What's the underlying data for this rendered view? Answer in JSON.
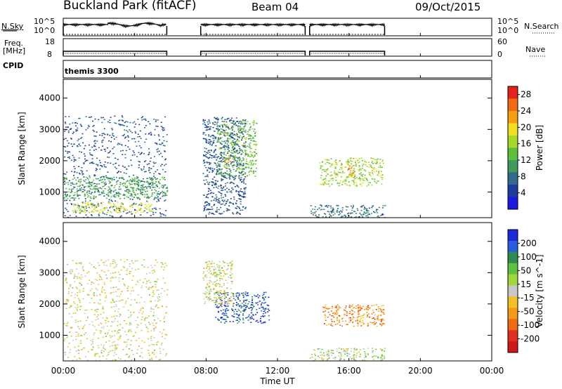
{
  "header": {
    "station": "Buckland Park (fitACF)",
    "beam": "Beam 04",
    "date": "09/Oct/2015"
  },
  "side_labels": {
    "nsky": "N.Sky",
    "nsky_top": "10^5",
    "nsky_bot": "10^0",
    "nsky_rtop": "10^5",
    "nsky_rbot": "10^0",
    "nsearch": "N.Search",
    "freq": "Freq.",
    "freq_unit": "[MHz]",
    "freq_top": "18",
    "freq_bot": "8",
    "nave_top": "60",
    "nave_bot": "0",
    "nave": "Nave",
    "cpid": "CPID",
    "cpid_value": "themis 3300"
  },
  "chart_data": [
    {
      "type": "line",
      "name": "noise panel",
      "ylim_left": [
        "10^0",
        "10^5"
      ],
      "ylim_right": [
        "10^0",
        "10^5"
      ],
      "data_gaps_hours": [
        [
          5.8,
          7.7
        ],
        [
          13.55,
          13.8
        ],
        [
          18.0,
          24.0
        ]
      ]
    },
    {
      "type": "line",
      "name": "frequency panel",
      "ylim_left": [
        8,
        18
      ],
      "ylim_right": [
        0,
        60
      ]
    },
    {
      "type": "heatmap",
      "ylabel": "Slant Range [km]",
      "yticks": [
        "1000",
        "2000",
        "3000",
        "4000"
      ],
      "ylim": [
        180,
        4600
      ],
      "colorbar": {
        "label": "Power [dB]",
        "ticks": [
          "4",
          "8",
          "12",
          "16",
          "20",
          "24",
          "28"
        ],
        "range": [
          0,
          30
        ],
        "colors": [
          "#1a1ae6",
          "#1e3c9c",
          "#2e6b8c",
          "#3f9b5c",
          "#5cc03c",
          "#a8d828",
          "#f2e020",
          "#f5a011",
          "#f06a10",
          "#e6201a"
        ]
      },
      "blobs": [
        {
          "t0": 0.0,
          "t1": 5.8,
          "r0": 200,
          "r1": 3450,
          "value": 6
        },
        {
          "t0": 0.0,
          "t1": 5.8,
          "r0": 800,
          "r1": 1500,
          "value": 12
        },
        {
          "t0": 0.5,
          "t1": 5.0,
          "r0": 350,
          "r1": 700,
          "value": 18
        },
        {
          "t0": 7.8,
          "t1": 10.2,
          "r0": 300,
          "r1": 3400,
          "value": 6
        },
        {
          "t0": 8.6,
          "t1": 10.8,
          "r0": 1500,
          "r1": 3300,
          "value": 14
        },
        {
          "t0": 9.0,
          "t1": 9.4,
          "r0": 1900,
          "r1": 2200,
          "value": 24
        },
        {
          "t0": 13.8,
          "t1": 18.0,
          "r0": 200,
          "r1": 600,
          "value": 8
        },
        {
          "t0": 14.3,
          "t1": 17.9,
          "r0": 1200,
          "r1": 2100,
          "value": 16
        },
        {
          "t0": 15.8,
          "t1": 16.3,
          "r0": 1500,
          "r1": 1900,
          "value": 24
        }
      ]
    },
    {
      "type": "heatmap",
      "xlabel": "Time UT",
      "xticks": [
        "00:00",
        "04:00",
        "08:00",
        "12:00",
        "16:00",
        "20:00",
        "00:00"
      ],
      "xlim": [
        0,
        24
      ],
      "ylabel": "Slant Range [km]",
      "yticks": [
        "1000",
        "2000",
        "3000",
        "4000"
      ],
      "ylim": [
        180,
        4600
      ],
      "colorbar": {
        "label": "Velocity [m s^-1]",
        "ticks": [
          "200",
          "100",
          "50",
          "15",
          "-15",
          "-50",
          "-100",
          "-200"
        ],
        "colors": [
          "#1a2ad8",
          "#2a5ce0",
          "#2e8a50",
          "#60c040",
          "#a0d83a",
          "#c8c8c8",
          "#f2c020",
          "#f59a18",
          "#f06a10",
          "#e03020",
          "#d01818"
        ]
      },
      "blobs": [
        {
          "t0": 0.0,
          "t1": 5.8,
          "r0": 200,
          "r1": 3450,
          "value": 0
        },
        {
          "t0": 8.5,
          "t1": 11.5,
          "r0": 1400,
          "r1": 2400,
          "value": 150
        },
        {
          "t0": 7.8,
          "t1": 9.5,
          "r0": 2000,
          "r1": 3400,
          "value": 0
        },
        {
          "t0": 14.5,
          "t1": 18.0,
          "r0": 1300,
          "r1": 2000,
          "value": -80
        },
        {
          "t0": 13.8,
          "t1": 18.0,
          "r0": 200,
          "r1": 600,
          "value": 30
        }
      ]
    }
  ]
}
